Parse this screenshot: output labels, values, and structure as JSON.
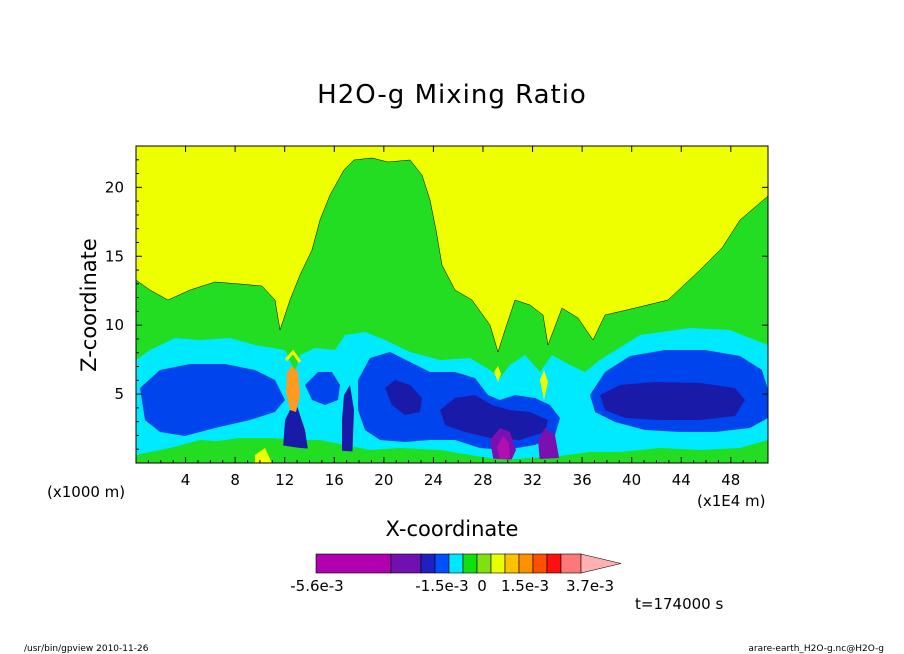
{
  "chart_data": {
    "type": "heatmap",
    "title": "H2O-g Mixing Ratio",
    "xlabel": "X-coordinate",
    "ylabel": "Z-coordinate",
    "xlim": [
      0,
      51
    ],
    "ylim": [
      0,
      23
    ],
    "x_ticks": [
      4,
      8,
      12,
      16,
      20,
      24,
      28,
      32,
      36,
      40,
      44,
      48
    ],
    "x_tick_labels": [
      "4",
      "8",
      "12",
      "16",
      "20",
      "24",
      "28",
      "32",
      "36",
      "40",
      "44",
      "48"
    ],
    "y_ticks": [
      5,
      10,
      15,
      20
    ],
    "y_tick_labels": [
      "5",
      "10",
      "15",
      "20"
    ],
    "x_unit_label": "(x1000 m)",
    "x_scale_label": "(x1E4 m)",
    "time_label": "t=174000 s",
    "colorbar": {
      "labels": [
        "-5.6e-3",
        "-1.5e-3",
        "0",
        "1.5e-3",
        "3.7e-3"
      ],
      "colors": [
        "#b000b0",
        "#7010b0",
        "#2020c0",
        "#0050ff",
        "#00e8ff",
        "#10e010",
        "#80e010",
        "#e8ff00",
        "#ffc000",
        "#ff9000",
        "#ff5000",
        "#ff1010",
        "#ff7878",
        "#ffb0b0"
      ]
    },
    "field_colors": {
      "yellow": "#eeff00",
      "green": "#22dd22",
      "cyan": "#00eaff",
      "blue": "#0044ee",
      "darkblue": "#1a1aa8",
      "purple": "#7a10b0",
      "magenta": "#b010b0",
      "orange": "#ff9a20"
    }
  },
  "footer": {
    "left": "/usr/bin/gpview   2010-11-26",
    "right": "arare-earth_H2O-g.nc@H2O-g"
  }
}
